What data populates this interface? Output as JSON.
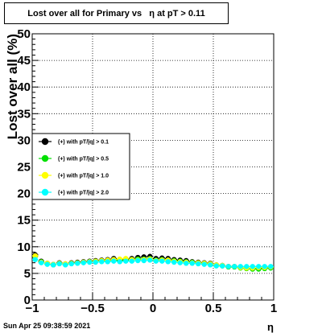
{
  "chart_data": {
    "type": "scatter",
    "title": "Lost over all for Primary vs   η at pT > 0.11",
    "xlabel": "η",
    "ylabel": "Lost over all (%)",
    "xlim": [
      -1,
      1
    ],
    "ylim": [
      0,
      50
    ],
    "x_ticks": [
      -1,
      -0.5,
      0,
      0.5,
      1
    ],
    "x_tick_labels": [
      "−1",
      "−0.5",
      "0",
      "0.5",
      "1"
    ],
    "y_ticks": [
      0,
      5,
      10,
      15,
      20,
      25,
      30,
      35,
      40,
      45,
      50
    ],
    "grid": true,
    "legend_position": "left-middle",
    "series": [
      {
        "name": "(+) with pT/|q| > 0.1",
        "color": "#000000",
        "x": [
          -0.975,
          -0.925,
          -0.875,
          -0.825,
          -0.775,
          -0.725,
          -0.675,
          -0.625,
          -0.575,
          -0.525,
          -0.475,
          -0.425,
          -0.375,
          -0.325,
          -0.275,
          -0.225,
          -0.175,
          -0.125,
          -0.075,
          -0.025,
          0.025,
          0.075,
          0.125,
          0.175,
          0.225,
          0.275,
          0.325,
          0.375,
          0.425,
          0.475,
          0.525,
          0.575,
          0.625,
          0.675,
          0.725,
          0.775,
          0.825,
          0.875,
          0.925,
          0.975
        ],
        "y": [
          8.5,
          7.3,
          6.9,
          6.7,
          7.0,
          6.8,
          7.0,
          7.1,
          7.2,
          7.3,
          7.4,
          7.5,
          7.6,
          7.8,
          7.5,
          7.7,
          7.8,
          8.0,
          8.1,
          8.2,
          7.8,
          7.9,
          7.8,
          7.6,
          7.5,
          7.4,
          7.2,
          7.1,
          7.0,
          6.9,
          6.6,
          6.5,
          6.3,
          6.3,
          6.1,
          6.0,
          5.9,
          5.9,
          6.0,
          6.1
        ]
      },
      {
        "name": "(+) with pT/|q| > 0.5",
        "color": "#00e000",
        "x": [
          -0.975,
          -0.925,
          -0.875,
          -0.825,
          -0.775,
          -0.725,
          -0.675,
          -0.625,
          -0.575,
          -0.525,
          -0.475,
          -0.425,
          -0.375,
          -0.325,
          -0.275,
          -0.225,
          -0.175,
          -0.125,
          -0.075,
          -0.025,
          0.025,
          0.075,
          0.125,
          0.175,
          0.225,
          0.275,
          0.325,
          0.375,
          0.425,
          0.475,
          0.525,
          0.575,
          0.625,
          0.675,
          0.725,
          0.775,
          0.825,
          0.875,
          0.925,
          0.975
        ],
        "y": [
          8.2,
          7.2,
          6.8,
          6.6,
          6.9,
          6.7,
          6.9,
          7.0,
          7.1,
          7.2,
          7.3,
          7.3,
          7.4,
          7.5,
          7.4,
          7.5,
          7.6,
          7.7,
          7.7,
          7.8,
          7.5,
          7.6,
          7.5,
          7.4,
          7.3,
          7.2,
          7.1,
          7.0,
          6.9,
          6.8,
          6.5,
          6.4,
          6.2,
          6.2,
          6.0,
          5.9,
          5.8,
          5.8,
          5.9,
          6.0
        ]
      },
      {
        "name": "(+) with pT/|q| > 1.0",
        "color": "#ffff00",
        "x": [
          -0.975,
          -0.925,
          -0.875,
          -0.825,
          -0.775,
          -0.725,
          -0.675,
          -0.625,
          -0.575,
          -0.525,
          -0.475,
          -0.425,
          -0.375,
          -0.325,
          -0.275,
          -0.225,
          -0.175,
          -0.125,
          -0.075,
          -0.025,
          0.025,
          0.075,
          0.125,
          0.175,
          0.225,
          0.275,
          0.325,
          0.375,
          0.425,
          0.475,
          0.525,
          0.575,
          0.625,
          0.675,
          0.725,
          0.775,
          0.825,
          0.875,
          0.925,
          0.975
        ],
        "y": [
          8.3,
          7.1,
          6.9,
          6.7,
          6.9,
          6.8,
          6.9,
          7.0,
          7.1,
          7.2,
          7.3,
          7.4,
          7.5,
          7.6,
          7.7,
          7.8,
          7.6,
          7.5,
          7.6,
          7.7,
          7.4,
          7.5,
          7.5,
          7.3,
          7.2,
          7.1,
          7.0,
          7.0,
          6.9,
          6.8,
          6.6,
          6.5,
          6.3,
          6.3,
          6.1,
          6.0,
          6.0,
          6.1,
          6.1,
          6.2
        ]
      },
      {
        "name": "(+) with pT/|q| > 2.0",
        "color": "#00ffff",
        "x": [
          -0.975,
          -0.925,
          -0.875,
          -0.825,
          -0.775,
          -0.725,
          -0.675,
          -0.625,
          -0.575,
          -0.525,
          -0.475,
          -0.425,
          -0.375,
          -0.325,
          -0.275,
          -0.225,
          -0.175,
          -0.125,
          -0.075,
          -0.025,
          0.025,
          0.075,
          0.125,
          0.175,
          0.225,
          0.275,
          0.325,
          0.375,
          0.425,
          0.475,
          0.525,
          0.575,
          0.625,
          0.675,
          0.725,
          0.775,
          0.825,
          0.875,
          0.925,
          0.975
        ],
        "y": [
          7.6,
          7.0,
          6.7,
          6.6,
          6.8,
          6.6,
          6.8,
          6.9,
          7.0,
          7.1,
          7.1,
          7.2,
          7.2,
          7.3,
          7.2,
          7.3,
          7.3,
          7.4,
          7.4,
          7.5,
          7.3,
          7.3,
          7.2,
          7.1,
          7.0,
          6.9,
          6.9,
          6.8,
          6.7,
          6.6,
          6.4,
          6.4,
          6.3,
          6.3,
          6.3,
          6.3,
          6.3,
          6.3,
          6.3,
          6.3
        ]
      }
    ]
  },
  "footer": {
    "timestamp": "Sun Apr 25 09:38:59 2021"
  }
}
